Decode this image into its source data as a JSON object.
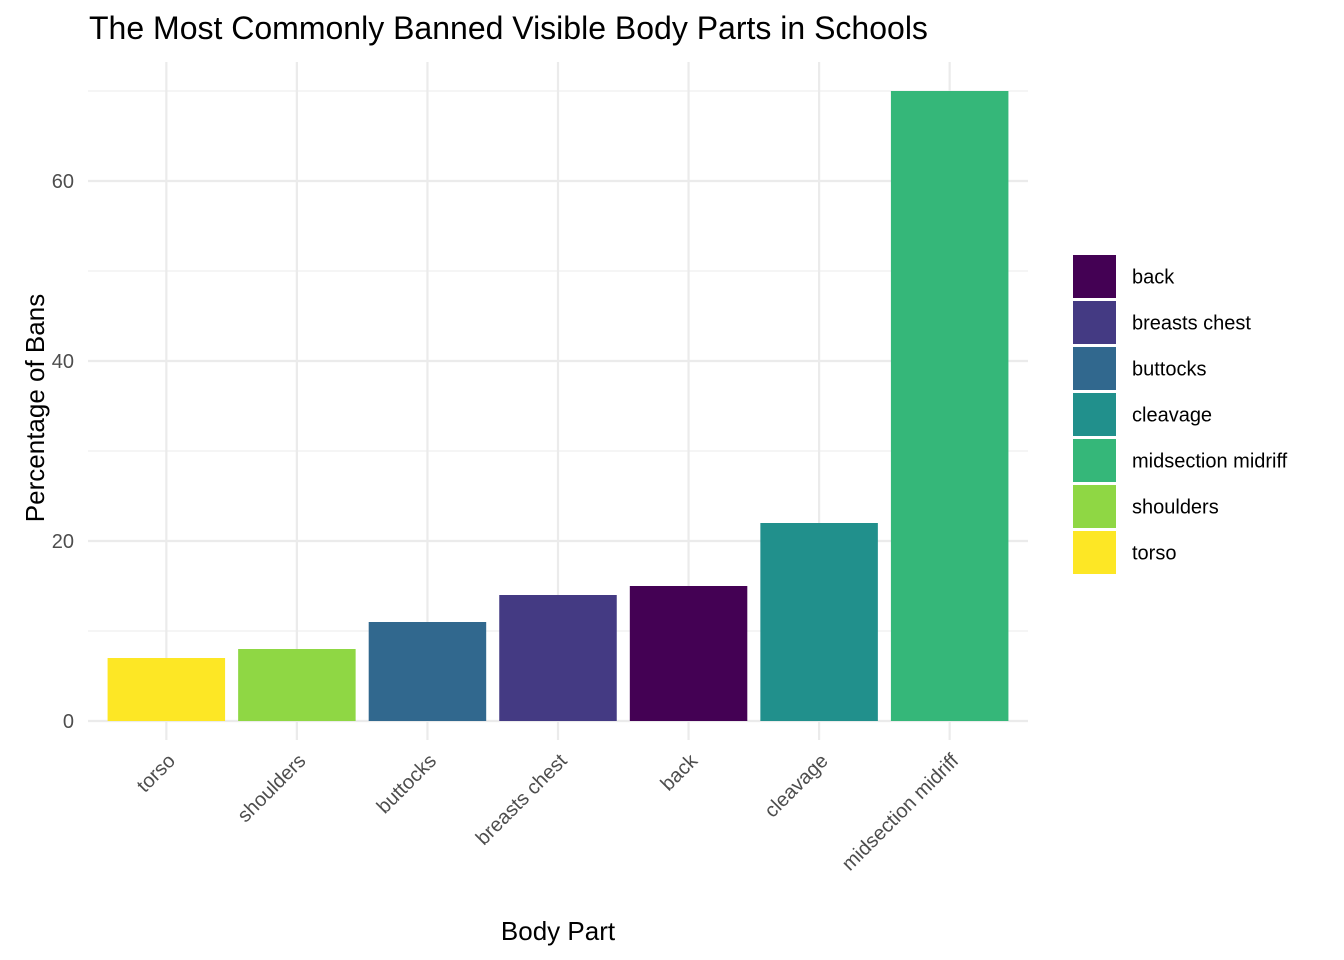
{
  "chart_data": {
    "type": "bar",
    "title": "The Most Commonly Banned Visible Body Parts in Schools",
    "xlabel": "Body Part",
    "ylabel": "Percentage of Bans",
    "categories": [
      "torso",
      "shoulders",
      "buttocks",
      "breasts chest",
      "back",
      "cleavage",
      "midsection midriff"
    ],
    "values": [
      7,
      8,
      11,
      14,
      15,
      22,
      70
    ],
    "colors": {
      "back": "#440154",
      "breasts chest": "#443A83",
      "buttocks": "#31688E",
      "cleavage": "#21908C",
      "midsection midriff": "#35B779",
      "shoulders": "#8FD744",
      "torso": "#FDE725"
    },
    "ylim": [
      0,
      70
    ],
    "yticks": [
      0,
      20,
      40,
      60
    ],
    "legend": {
      "position": "right",
      "entries": [
        "back",
        "breasts chest",
        "buttocks",
        "cleavage",
        "midsection midriff",
        "shoulders",
        "torso"
      ]
    },
    "grid": true
  }
}
